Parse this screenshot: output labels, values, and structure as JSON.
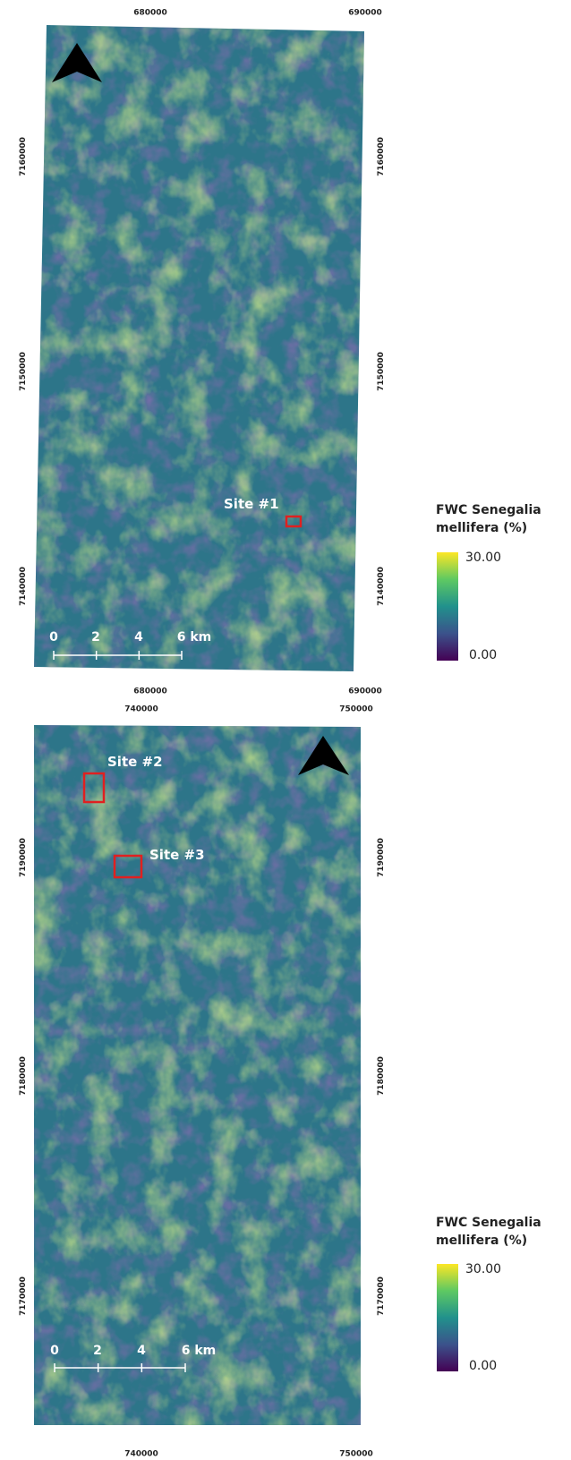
{
  "panels": [
    {
      "x_labels_top": [
        "680000",
        "690000"
      ],
      "x_labels_bottom": [
        "680000",
        "690000"
      ],
      "y_labels_left": [
        "7160000",
        "7150000",
        "7140000"
      ],
      "y_labels_right": [
        "7160000",
        "7150000",
        "7140000"
      ],
      "sites": [
        "Site #1"
      ],
      "scale_bar": [
        "0",
        "2",
        "4",
        "6 km"
      ],
      "legend": {
        "title": [
          "FWC Senegalia",
          "mellifera (%)"
        ],
        "max": "30.00",
        "min": "0.00"
      }
    },
    {
      "x_labels_top": [
        "740000",
        "750000"
      ],
      "x_labels_bottom": [
        "740000",
        "750000"
      ],
      "y_labels_left": [
        "7190000",
        "7180000",
        "7170000"
      ],
      "y_labels_right": [
        "7190000",
        "7180000",
        "7170000"
      ],
      "sites": [
        "Site #2",
        "Site #3"
      ],
      "scale_bar": [
        "0",
        "2",
        "4",
        "6 km"
      ],
      "legend": {
        "title": [
          "FWC Senegalia",
          "mellifera (%)"
        ],
        "max": "30.00",
        "min": "0.00"
      }
    }
  ]
}
